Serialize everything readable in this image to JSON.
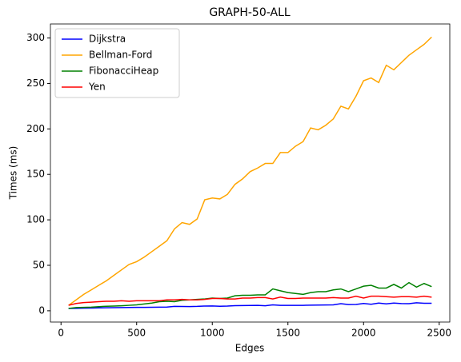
{
  "chart_data": {
    "type": "line",
    "title": "GRAPH-50-ALL",
    "x_label": "Edges",
    "y_label": "Times (ms)",
    "x": [
      50,
      100,
      150,
      200,
      250,
      300,
      350,
      400,
      450,
      500,
      550,
      600,
      650,
      700,
      750,
      800,
      850,
      900,
      950,
      1000,
      1050,
      1100,
      1150,
      1200,
      1250,
      1300,
      1350,
      1400,
      1450,
      1500,
      1550,
      1600,
      1650,
      1700,
      1750,
      1800,
      1850,
      1900,
      1950,
      2000,
      2050,
      2100,
      2150,
      2200,
      2250,
      2300,
      2350,
      2400,
      2450
    ],
    "series": [
      {
        "name": "Dijkstra",
        "color": "#0000ff",
        "values": [
          2.5,
          2.7,
          2.9,
          3.0,
          3.2,
          3.3,
          3.4,
          3.5,
          3.6,
          3.7,
          3.8,
          3.9,
          4.0,
          4.1,
          4.8,
          4.7,
          4.6,
          4.8,
          5.2,
          5.3,
          5.0,
          5.2,
          5.6,
          5.7,
          5.8,
          5.9,
          5.5,
          6.5,
          6.0,
          5.9,
          5.9,
          6.0,
          6.2,
          6.3,
          6.4,
          6.5,
          7.8,
          6.8,
          6.9,
          8.0,
          7.2,
          8.5,
          7.6,
          8.5,
          7.9,
          7.8,
          8.8,
          8.2,
          8.3
        ]
      },
      {
        "name": "Bellman-Ford",
        "color": "#ffa500",
        "values": [
          6,
          12,
          18,
          23,
          28,
          33,
          39,
          45,
          51,
          54,
          59,
          65,
          71,
          77,
          90,
          97,
          95,
          101,
          122,
          124,
          123,
          128,
          139,
          145,
          153,
          157,
          162,
          162,
          174,
          174,
          181,
          186,
          201,
          199,
          204,
          211,
          225,
          222,
          236,
          253,
          256,
          251,
          270,
          265,
          273,
          281,
          287,
          293,
          301
        ]
      },
      {
        "name": "FibonacciHeap",
        "color": "#008000",
        "values": [
          2.5,
          3.5,
          3.8,
          4.0,
          4.5,
          5.0,
          5.2,
          5.5,
          6.0,
          6.5,
          7.5,
          8.5,
          10,
          10.5,
          10,
          11.5,
          12,
          12.5,
          13,
          14,
          13.5,
          14,
          16.5,
          17,
          17,
          17.5,
          17.5,
          24,
          22,
          20,
          19,
          18,
          20,
          21,
          21,
          23,
          24,
          21,
          24,
          27,
          28,
          25,
          25,
          29,
          25,
          31,
          26,
          30,
          26.5
        ]
      },
      {
        "name": "Yen",
        "color": "#ff0000",
        "values": [
          6,
          8,
          9,
          9.5,
          10,
          10.5,
          10.5,
          11,
          10.5,
          11,
          11,
          11,
          11,
          12,
          12,
          12.5,
          12,
          12,
          12.5,
          13.5,
          13.5,
          13,
          13,
          14,
          14,
          14.5,
          14.5,
          13,
          15,
          13.5,
          13.5,
          14,
          14,
          14,
          14,
          14.5,
          14,
          14,
          16,
          14,
          16,
          16,
          15.5,
          15,
          15.5,
          15.5,
          15,
          16,
          15
        ]
      }
    ],
    "xlim": [
      -70,
      2570
    ],
    "ylim": [
      -12.4,
      315.4
    ],
    "xticks": [
      0,
      500,
      1000,
      1500,
      2000,
      2500
    ],
    "yticks": [
      0,
      50,
      100,
      150,
      200,
      250,
      300
    ],
    "legend": "upper left"
  }
}
